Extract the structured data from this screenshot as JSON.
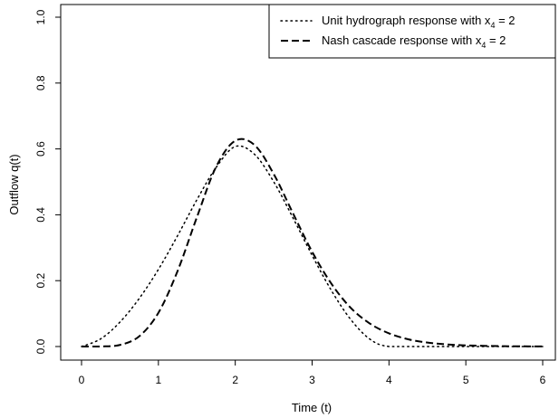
{
  "chart_data": {
    "type": "line",
    "xlabel": "Time (t)",
    "ylabel": "Outflow q(t)",
    "xlim": [
      0,
      6
    ],
    "ylim": [
      0,
      1
    ],
    "x_ticks": [
      0,
      1,
      2,
      3,
      4,
      5,
      6
    ],
    "y_ticks": [
      0.0,
      0.2,
      0.4,
      0.6,
      0.8,
      1.0
    ],
    "y_tick_labels": [
      "0.0",
      "0.2",
      "0.4",
      "0.6",
      "0.8",
      "1.0"
    ],
    "grid": false,
    "legend_position": "top-right",
    "legend": [
      {
        "prefix": "Unit hydrograph response with x",
        "subscript": "4",
        "suffix": " = 2",
        "style": "dotted"
      },
      {
        "prefix": "Nash cascade response with x",
        "subscript": "4",
        "suffix": " = 2",
        "style": "dashed"
      }
    ],
    "series": [
      {
        "name": "Unit hydrograph response with x4 = 2",
        "style": "dotted",
        "x": [
          0,
          0.25,
          0.5,
          0.75,
          1.0,
          1.25,
          1.5,
          1.75,
          2.0,
          2.25,
          2.5,
          2.75,
          3.0,
          3.25,
          3.5,
          3.75,
          4.0,
          4.5,
          5.0,
          5.5,
          6.0
        ],
        "values": [
          0,
          0.0234,
          0.0742,
          0.1458,
          0.2341,
          0.3367,
          0.4453,
          0.5435,
          0.6073,
          0.5838,
          0.5004,
          0.3911,
          0.2768,
          0.1704,
          0.0828,
          0.0227,
          0,
          0,
          0,
          0,
          0
        ]
      },
      {
        "name": "Nash cascade response with x4 = 2",
        "style": "dashed",
        "x": [
          0,
          0.25,
          0.5,
          0.75,
          1.0,
          1.25,
          1.5,
          1.75,
          2.0,
          2.25,
          2.5,
          2.75,
          3.0,
          3.25,
          3.5,
          3.75,
          4.0,
          4.25,
          4.5,
          4.75,
          5.0,
          5.5,
          6.0
        ],
        "values": [
          0,
          0.0002,
          0.0049,
          0.031,
          0.1024,
          0.2295,
          0.392,
          0.5453,
          0.625,
          0.612,
          0.524,
          0.405,
          0.288,
          0.191,
          0.118,
          0.07,
          0.04,
          0.022,
          0.012,
          0.0065,
          0.0035,
          0.001,
          0.0003
        ]
      }
    ]
  }
}
